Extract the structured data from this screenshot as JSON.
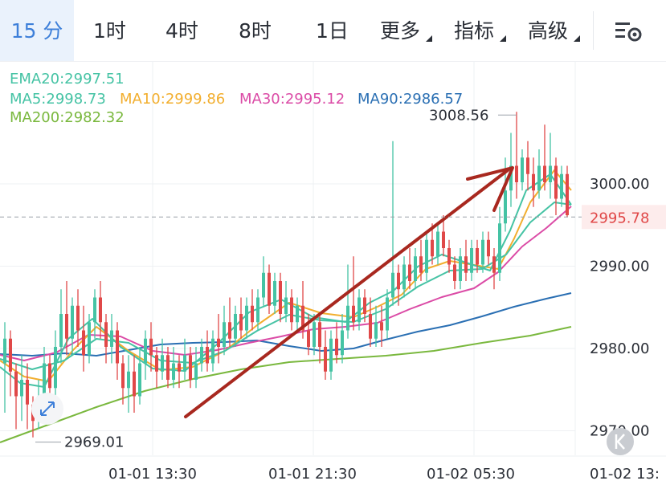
{
  "timeframes": [
    {
      "label": "15 分",
      "active": true
    },
    {
      "label": "1时"
    },
    {
      "label": "4时"
    },
    {
      "label": "8时"
    },
    {
      "label": "1日"
    },
    {
      "label": "更多",
      "dropdown": true
    },
    {
      "label": "指标",
      "dropdown": true
    },
    {
      "label": "高级",
      "dropdown": true
    }
  ],
  "settings_icon": "chart-settings-icon",
  "indicators": {
    "ema20": {
      "text": "EMA20:2997.51",
      "color": "#45c3a4"
    },
    "ma5": {
      "text": "MA5:2998.73",
      "color": "#45c3a4"
    },
    "ma10": {
      "text": "MA10:2999.86",
      "color": "#f2ae2e"
    },
    "ma30": {
      "text": "MA30:2995.12",
      "color": "#db4ba6"
    },
    "ma90": {
      "text": "MA90:2986.57",
      "color": "#2a6fb3"
    },
    "ma200": {
      "text": "MA200:2982.32",
      "color": "#7ab83e"
    }
  },
  "price_axis": {
    "labels": [
      "3000.00",
      "2990.00",
      "2980.00",
      "2970.00"
    ],
    "values": [
      3000,
      2990,
      2980,
      2970
    ]
  },
  "time_axis": {
    "labels": [
      "01-01 13:30",
      "01-01 21:30",
      "01-02 05:30",
      "01-02 13:"
    ]
  },
  "current_price": {
    "text": "2995.78",
    "value": 2995.78,
    "color": "#e04848"
  },
  "high_marker": {
    "text": "3008.56",
    "value": 3008.56
  },
  "low_marker": {
    "text": "2969.01",
    "value": 2969.01
  },
  "colors": {
    "up": "#45c3a4",
    "down": "#e04848",
    "accent": "#3d7fd9",
    "annotation_arrow": "#a8281f"
  },
  "reset_button_icon": "reset-view-icon"
}
